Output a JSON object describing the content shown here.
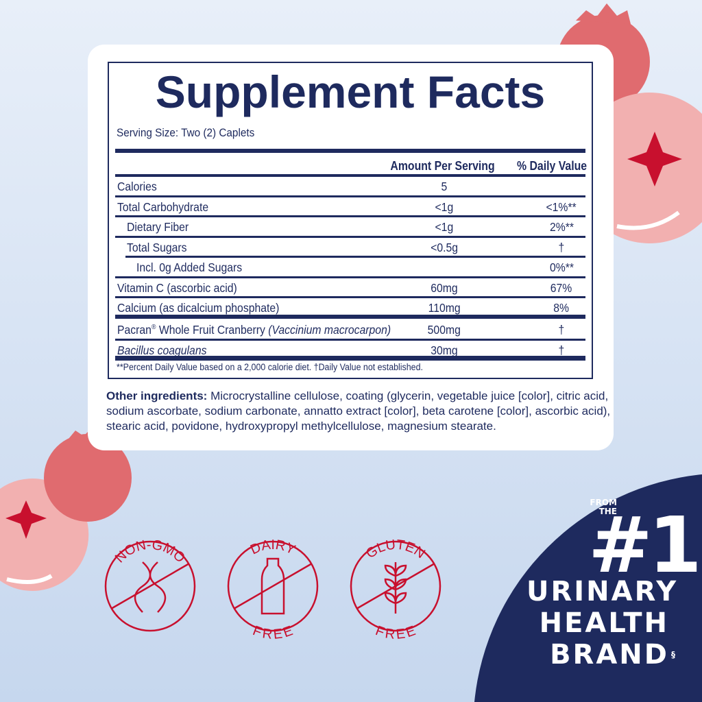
{
  "title": "Supplement Facts",
  "serving_size": "Serving Size: Two (2) Caplets",
  "headers": {
    "amount": "Amount Per Serving",
    "dv": "% Daily Value"
  },
  "rows": [
    {
      "name": "Calories",
      "amount": "5",
      "dv": ""
    },
    {
      "name": "Total Carbohydrate",
      "amount": "<1g",
      "dv": "<1%**"
    },
    {
      "name": "Dietary Fiber",
      "amount": "<1g",
      "dv": "2%**"
    },
    {
      "name": "Total Sugars",
      "amount": "<0.5g",
      "dv": "†"
    },
    {
      "name": "Incl. 0g Added Sugars",
      "amount": "",
      "dv": "0%**"
    },
    {
      "name": "Vitamin C (ascorbic acid)",
      "amount": "60mg",
      "dv": "67%"
    },
    {
      "name": "Calcium (as dicalcium phosphate)",
      "amount": "110mg",
      "dv": "8%"
    },
    {
      "name": "Pacran",
      "name_sup": "®",
      "name_rest": " Whole Fruit Cranberry ",
      "name_italic": "(Vaccinium macrocarpon)",
      "amount": "500mg",
      "dv": "†"
    },
    {
      "name": "Bacillus coagulans",
      "amount": "30mg",
      "dv": "†"
    }
  ],
  "footnote": "**Percent Daily Value based on a 2,000 calorie diet.  †Daily Value not established.",
  "other_label": "Other ingredients:",
  "other_text": " Microcrystalline cellulose, coating (glycerin, vegetable juice [color], citric acid, sodium ascorbate, sodium carbonate, annatto extract [color], beta carotene [color], ascorbic acid), stearic acid, povidone, hydroxypropyl methylcellulose, magnesium stearate.",
  "badges": [
    {
      "top": "NON-GMO",
      "bottom": "",
      "icon": "dna-icon"
    },
    {
      "top": "DAIRY",
      "bottom": "FREE",
      "icon": "milk-bottle-icon"
    },
    {
      "top": "GLUTEN",
      "bottom": "FREE",
      "icon": "wheat-icon"
    }
  ],
  "brand": {
    "from": "FROM",
    "the": "THE",
    "number": "#1",
    "line1": "URINARY",
    "line2": "HEALTH",
    "line3": "BRAND",
    "mark": "§"
  },
  "colors": {
    "navy": "#1e2a5e",
    "cranberry": "#c8102e",
    "berry_light": "#f0aeae",
    "berry_dark": "#e06b6f"
  }
}
